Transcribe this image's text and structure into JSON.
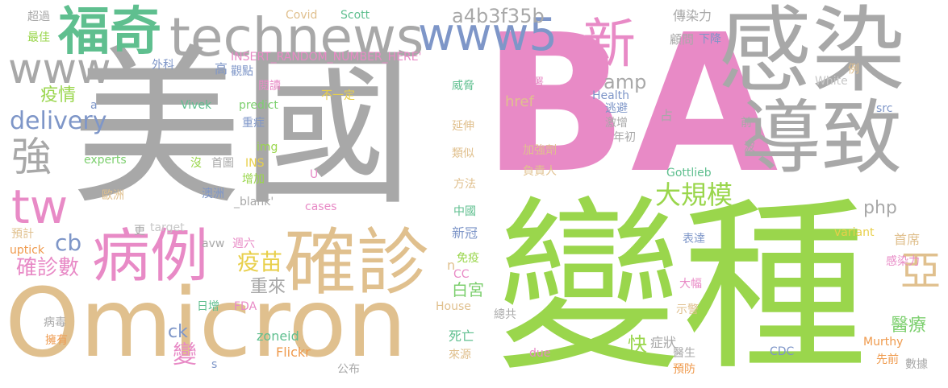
{
  "words": [
    {
      "text": "美國",
      "color": "#a8a8a8"
    },
    {
      "text": "BA",
      "color": "#e88ac6"
    },
    {
      "text": "變種",
      "color": "#9ad64c"
    },
    {
      "text": "Omicron",
      "color": "#e0c08e"
    },
    {
      "text": "感染",
      "color": "#a8a8a8"
    },
    {
      "text": "導致",
      "color": "#a8a8a8"
    },
    {
      "text": "確診",
      "color": "#e0c08e"
    },
    {
      "text": "technews",
      "color": "#a8a8a8"
    },
    {
      "text": "www5",
      "color": "#7e96c8"
    },
    {
      "text": "福奇",
      "color": "#5fbf8f"
    },
    {
      "text": "新",
      "color": "#e88ac6"
    },
    {
      "text": "病例",
      "color": "#e88ac6"
    },
    {
      "text": "www",
      "color": "#a8a8a8"
    },
    {
      "text": "tw",
      "color": "#e88ac6"
    },
    {
      "text": "強",
      "color": "#a8a8a8"
    },
    {
      "text": "delivery",
      "color": "#7e96c8"
    },
    {
      "text": "疫情",
      "color": "#9ad64c"
    },
    {
      "text": "亞",
      "color": "#e0c08e"
    },
    {
      "text": "大規模",
      "color": "#9ad64c"
    },
    {
      "text": "疫苗",
      "color": "#e8cf4a"
    },
    {
      "text": "確診數",
      "color": "#e88ac6"
    },
    {
      "text": "a4b3f35b",
      "color": "#a8a8a8"
    },
    {
      "text": "amp",
      "color": "#a8a8a8"
    },
    {
      "text": "php",
      "color": "#a8a8a8"
    },
    {
      "text": "變",
      "color": "#e88ac6"
    },
    {
      "text": "cb",
      "color": "#7e96c8"
    },
    {
      "text": "ck",
      "color": "#7e96c8"
    },
    {
      "text": "快",
      "color": "#9ad64c"
    },
    {
      "text": "醫療",
      "color": "#7ccf6e"
    },
    {
      "text": "重來",
      "color": "#a8a8a8"
    },
    {
      "text": "白宮",
      "color": "#7ccf6e"
    },
    {
      "text": "href",
      "color": "#e0c08e"
    },
    {
      "text": "首席",
      "color": "#e0c08e"
    },
    {
      "text": "死亡",
      "color": "#5fbf8f"
    },
    {
      "text": "zoneid",
      "color": "#5fbf8f"
    },
    {
      "text": "Flickr",
      "color": "#ef9a4d"
    },
    {
      "text": "INSERT_RANDOM_NUMBER_HERE'",
      "color": "#e88ac6"
    },
    {
      "text": "傳染力",
      "color": "#a8a8a8"
    },
    {
      "text": "顧問",
      "color": "#a8a8a8"
    },
    {
      "text": "下降",
      "color": "#7e96c8"
    },
    {
      "text": "超過",
      "color": "#a8a8a8"
    },
    {
      "text": "最佳",
      "color": "#9ad64c"
    },
    {
      "text": "Covid",
      "color": "#e0c08e"
    },
    {
      "text": "Scott",
      "color": "#5fbf8f"
    },
    {
      "text": "外科",
      "color": "#7e96c8"
    },
    {
      "text": "觀點",
      "color": "#7e96c8"
    },
    {
      "text": "高",
      "color": "#7e96c8"
    },
    {
      "text": "閱讀",
      "color": "#e88ac6"
    },
    {
      "text": "不一定",
      "color": "#e8cf4a"
    },
    {
      "text": "威脅",
      "color": "#5fbf8f"
    },
    {
      "text": "疾管署",
      "color": "#e88ac6"
    },
    {
      "text": "逃避",
      "color": "#7e96c8"
    },
    {
      "text": "激增",
      "color": "#a8a8a8"
    },
    {
      "text": "年初",
      "color": "#a8a8a8"
    },
    {
      "text": "Health",
      "color": "#7e96c8"
    },
    {
      "text": "White",
      "color": "#c7c7c7"
    },
    {
      "text": "src",
      "color": "#7e96c8"
    },
    {
      "text": "例",
      "color": "#e0c08e"
    },
    {
      "text": "占",
      "color": "#a8a8a8"
    },
    {
      "text": "前",
      "color": "#a8a8a8"
    },
    {
      "text": "波",
      "color": "#a8a8a8"
    },
    {
      "text": "Vivek",
      "color": "#5fbf8f"
    },
    {
      "text": "predict",
      "color": "#7ccf6e"
    },
    {
      "text": "a",
      "color": "#7e96c8"
    },
    {
      "text": "重症",
      "color": "#7e96c8"
    },
    {
      "text": "延伸",
      "color": "#e0c08e"
    },
    {
      "text": "類似",
      "color": "#e0c08e"
    },
    {
      "text": "加強劑",
      "color": "#e0c08e"
    },
    {
      "text": "負責人",
      "color": "#e0c08e"
    },
    {
      "text": "方法",
      "color": "#e0c08e"
    },
    {
      "text": "experts",
      "color": "#7ccf6e"
    },
    {
      "text": "img",
      "color": "#9ad64c"
    },
    {
      "text": "INS",
      "color": "#e8cf4a"
    },
    {
      "text": "沒",
      "color": "#9ad64c"
    },
    {
      "text": "首圖",
      "color": "#a8a8a8"
    },
    {
      "text": "增加",
      "color": "#9ad64c"
    },
    {
      "text": "U",
      "color": "#e88ac6"
    },
    {
      "text": "Gottlieb",
      "color": "#5fbf8f"
    },
    {
      "text": "歐洲",
      "color": "#e0c08e"
    },
    {
      "text": "澳洲",
      "color": "#7e96c8"
    },
    {
      "text": "_blank'",
      "color": "#a8a8a8"
    },
    {
      "text": "cases",
      "color": "#e88ac6"
    },
    {
      "text": "中國",
      "color": "#5fbf8f"
    },
    {
      "text": "新冠",
      "color": "#7e96c8"
    },
    {
      "text": "預計",
      "color": "#e0c08e"
    },
    {
      "text": "target",
      "color": "#c7c7c7"
    },
    {
      "text": "更",
      "color": "#a8a8a8"
    },
    {
      "text": "uptick",
      "color": "#ef9a4d"
    },
    {
      "text": "avw",
      "color": "#a8a8a8"
    },
    {
      "text": "週六",
      "color": "#e88ac6"
    },
    {
      "text": "免疫",
      "color": "#9ad64c"
    },
    {
      "text": "n",
      "color": "#e0c08e"
    },
    {
      "text": "CC",
      "color": "#e88ac6"
    },
    {
      "text": "variant",
      "color": "#e8cf4a"
    },
    {
      "text": "表達",
      "color": "#7e96c8"
    },
    {
      "text": "感染力",
      "color": "#e88ac6"
    },
    {
      "text": "大幅",
      "color": "#e88ac6"
    },
    {
      "text": "示警",
      "color": "#e0c08e"
    },
    {
      "text": "總共",
      "color": "#a8a8a8"
    },
    {
      "text": "House",
      "color": "#e0c08e"
    },
    {
      "text": "日增",
      "color": "#5fbf8f"
    },
    {
      "text": "FDA",
      "color": "#e88ac6"
    },
    {
      "text": "病毒",
      "color": "#a8a8a8"
    },
    {
      "text": "擁有",
      "color": "#ef9a4d"
    },
    {
      "text": "症狀",
      "color": "#a8a8a8"
    },
    {
      "text": "醫生",
      "color": "#a8a8a8"
    },
    {
      "text": "預防",
      "color": "#ef9a4d"
    },
    {
      "text": "Murthy",
      "color": "#ef9a4d"
    },
    {
      "text": "先前",
      "color": "#ef9a4d"
    },
    {
      "text": "CDC",
      "color": "#7e96c8"
    },
    {
      "text": "數據",
      "color": "#a8a8a8"
    },
    {
      "text": "due",
      "color": "#e88ac6"
    },
    {
      "text": "來源",
      "color": "#e0c08e"
    },
    {
      "text": "公布",
      "color": "#a8a8a8"
    },
    {
      "text": "s",
      "color": "#7e96c8"
    }
  ]
}
